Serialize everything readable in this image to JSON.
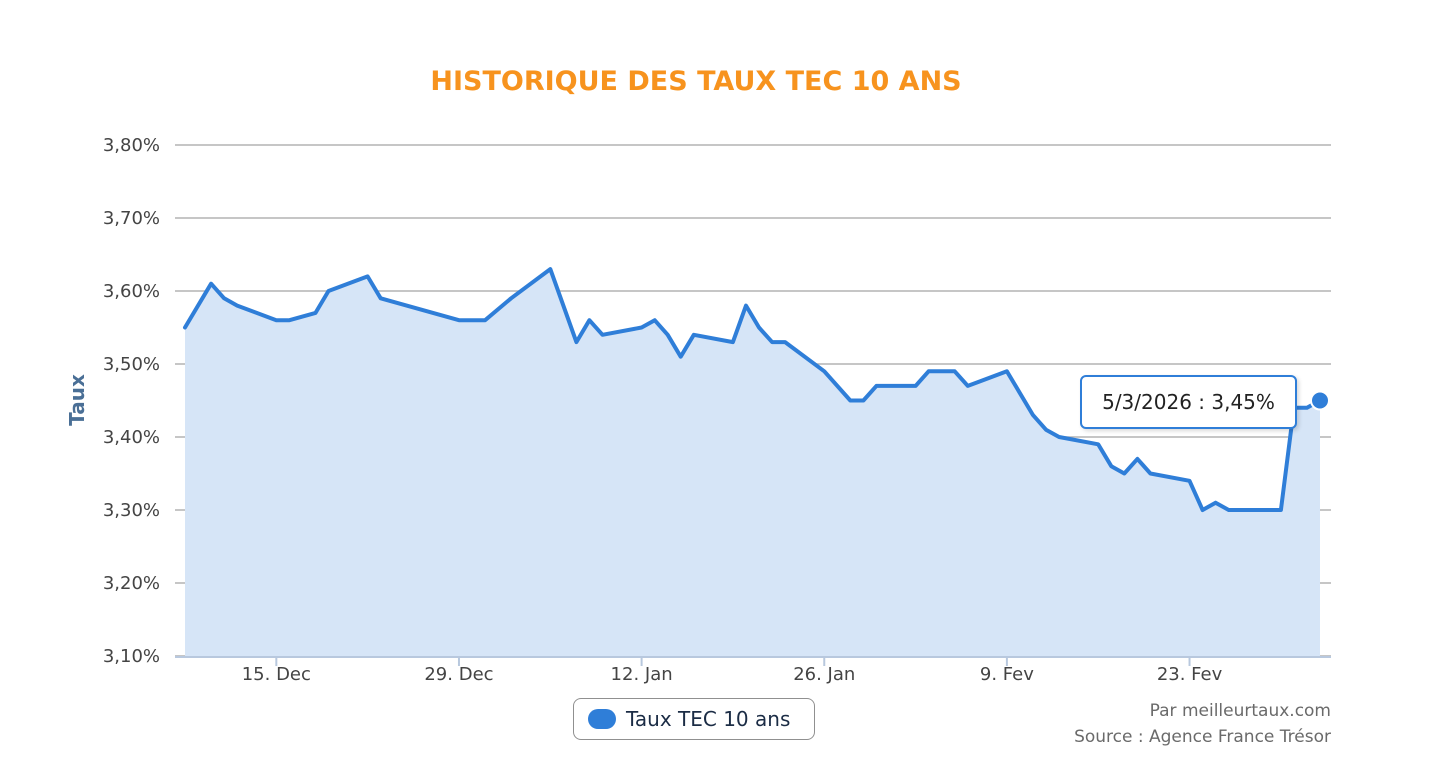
{
  "chart_data": {
    "type": "area",
    "title": "HISTORIQUE DES TAUX TEC 10 ANS",
    "ylabel": "Taux",
    "ylim": [
      3.1,
      3.8
    ],
    "y_ticks": [
      "3,10%",
      "3,20%",
      "3,30%",
      "3,40%",
      "3,50%",
      "3,60%",
      "3,70%",
      "3,80%"
    ],
    "x_range": [
      "2025-12-08",
      "2026-03-05"
    ],
    "x_ticks": [
      {
        "date": "2025-12-15",
        "label": "15. Dec"
      },
      {
        "date": "2025-12-29",
        "label": "29. Dec"
      },
      {
        "date": "2026-01-12",
        "label": "12. Jan"
      },
      {
        "date": "2026-01-26",
        "label": "26. Jan"
      },
      {
        "date": "2026-02-09",
        "label": "9. Fev"
      },
      {
        "date": "2026-02-23",
        "label": "23. Fev"
      }
    ],
    "series": [
      {
        "name": "Taux TEC 10 ans",
        "color": "#2f7ed8",
        "fill": "#d6e5f7",
        "points": [
          [
            "2025-12-08",
            3.55
          ],
          [
            "2025-12-10",
            3.61
          ],
          [
            "2025-12-11",
            3.59
          ],
          [
            "2025-12-12",
            3.58
          ],
          [
            "2025-12-15",
            3.56
          ],
          [
            "2025-12-16",
            3.56
          ],
          [
            "2025-12-18",
            3.57
          ],
          [
            "2025-12-19",
            3.6
          ],
          [
            "2025-12-22",
            3.62
          ],
          [
            "2025-12-23",
            3.59
          ],
          [
            "2025-12-29",
            3.56
          ],
          [
            "2025-12-31",
            3.56
          ],
          [
            "2026-01-02",
            3.59
          ],
          [
            "2026-01-05",
            3.63
          ],
          [
            "2026-01-07",
            3.53
          ],
          [
            "2026-01-08",
            3.56
          ],
          [
            "2026-01-09",
            3.54
          ],
          [
            "2026-01-12",
            3.55
          ],
          [
            "2026-01-13",
            3.56
          ],
          [
            "2026-01-14",
            3.54
          ],
          [
            "2026-01-15",
            3.51
          ],
          [
            "2026-01-16",
            3.54
          ],
          [
            "2026-01-19",
            3.53
          ],
          [
            "2026-01-20",
            3.58
          ],
          [
            "2026-01-21",
            3.55
          ],
          [
            "2026-01-22",
            3.53
          ],
          [
            "2026-01-23",
            3.53
          ],
          [
            "2026-01-26",
            3.49
          ],
          [
            "2026-01-28",
            3.45
          ],
          [
            "2026-01-29",
            3.45
          ],
          [
            "2026-01-30",
            3.47
          ],
          [
            "2026-02-02",
            3.47
          ],
          [
            "2026-02-03",
            3.49
          ],
          [
            "2026-02-05",
            3.49
          ],
          [
            "2026-02-06",
            3.47
          ],
          [
            "2026-02-09",
            3.49
          ],
          [
            "2026-02-11",
            3.43
          ],
          [
            "2026-02-12",
            3.41
          ],
          [
            "2026-02-13",
            3.4
          ],
          [
            "2026-02-16",
            3.39
          ],
          [
            "2026-02-17",
            3.36
          ],
          [
            "2026-02-18",
            3.35
          ],
          [
            "2026-02-19",
            3.37
          ],
          [
            "2026-02-20",
            3.35
          ],
          [
            "2026-02-23",
            3.34
          ],
          [
            "2026-02-24",
            3.3
          ],
          [
            "2026-02-25",
            3.31
          ],
          [
            "2026-02-26",
            3.3
          ],
          [
            "2026-03-02",
            3.3
          ],
          [
            "2026-03-03",
            3.44
          ],
          [
            "2026-03-04",
            3.44
          ],
          [
            "2026-03-05",
            3.45
          ]
        ]
      }
    ],
    "grid": true,
    "legend": "bottom-center",
    "tooltip": {
      "date": "2026-03-05",
      "text": "5/3/2026 : 3,45%"
    },
    "credits": [
      "Par meilleurtaux.com",
      "Source : Agence France Trésor"
    ]
  }
}
